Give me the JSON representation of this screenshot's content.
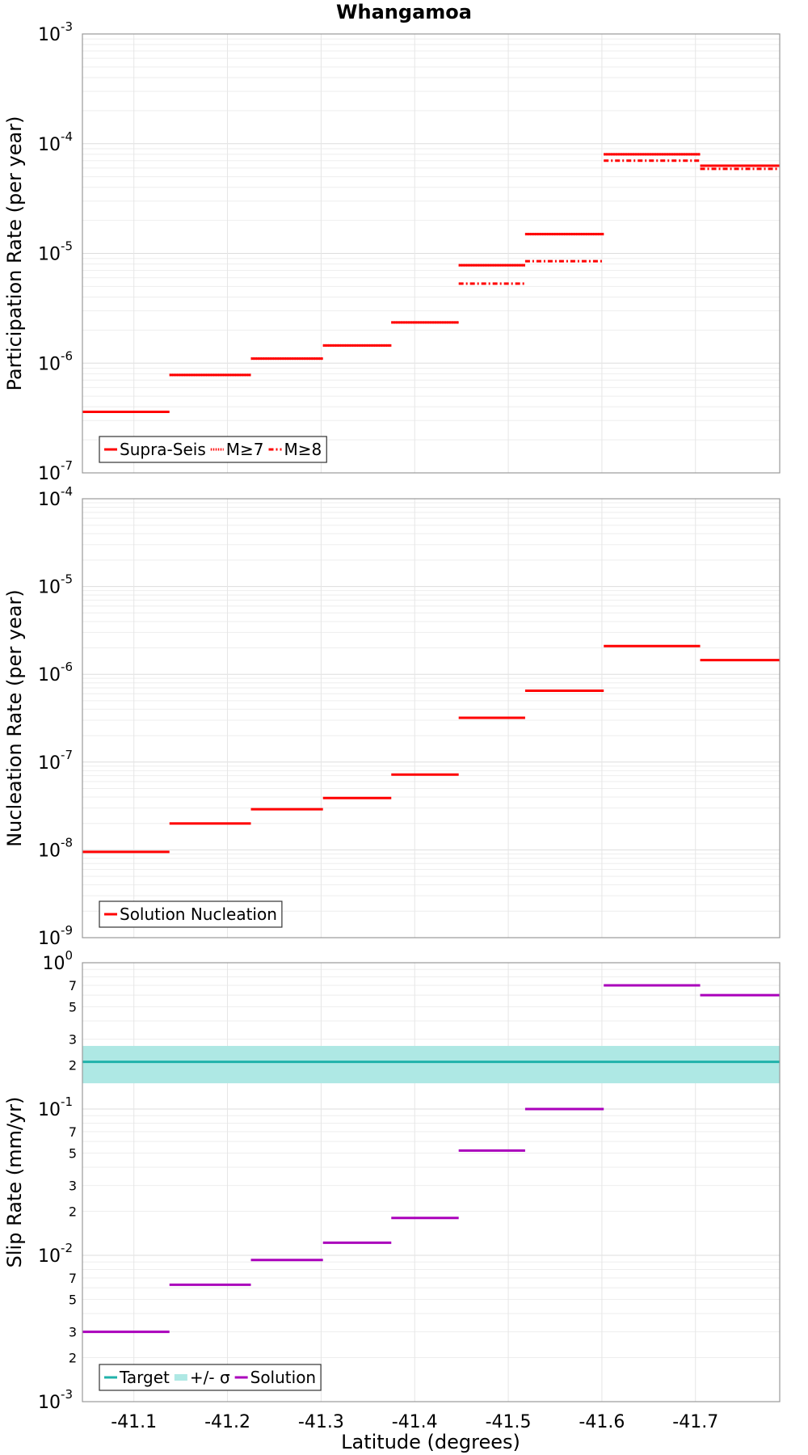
{
  "title": "Whangamoa",
  "x_axis": {
    "label": "Latitude (degrees)",
    "ticks": [
      "-41.1",
      "-41.2",
      "-41.3",
      "-41.4",
      "-41.5",
      "-41.6",
      "-41.7"
    ],
    "tick_values": [
      -41.1,
      -41.2,
      -41.3,
      -41.4,
      -41.5,
      -41.6,
      -41.7
    ],
    "range": [
      -41.045,
      -41.79
    ],
    "direction": "descending latitude left to right"
  },
  "chart_data": [
    {
      "type": "line",
      "name": "participation",
      "ylabel": "Participation Rate (per year)",
      "yscale": "log",
      "ylim": [
        1e-07,
        0.001
      ],
      "y_ticks": [
        {
          "value": 1e-07,
          "base": "10",
          "exp": "-7"
        },
        {
          "value": 1e-06,
          "base": "10",
          "exp": "-6"
        },
        {
          "value": 1e-05,
          "base": "10",
          "exp": "-5"
        },
        {
          "value": 0.0001,
          "base": "10",
          "exp": "-4"
        },
        {
          "value": 0.001,
          "base": "10",
          "exp": "-3"
        }
      ],
      "segments": [
        [
          -41.045,
          -41.138
        ],
        [
          -41.138,
          -41.225
        ],
        [
          -41.225,
          -41.302
        ],
        [
          -41.302,
          -41.375
        ],
        [
          -41.375,
          -41.447
        ],
        [
          -41.447,
          -41.518
        ],
        [
          -41.518,
          -41.602
        ],
        [
          -41.602,
          -41.705
        ],
        [
          -41.705,
          -41.79
        ]
      ],
      "series": [
        {
          "name": "Supra-Seis",
          "color": "#ff0000",
          "dash": "solid",
          "values": [
            3.6e-07,
            7.8e-07,
            1.1e-06,
            1.45e-06,
            2.35e-06,
            7.8e-06,
            1.5e-05,
            8e-05,
            6.3e-05
          ]
        },
        {
          "name": "M≥7",
          "color": "#ff0000",
          "dash": "dotted",
          "values": [
            3.6e-07,
            7.8e-07,
            1.1e-06,
            1.45e-06,
            2.35e-06,
            7.8e-06,
            1.5e-05,
            8e-05,
            6.3e-05
          ]
        },
        {
          "name": "M≥8",
          "color": "#ff0000",
          "dash": "dashdot",
          "values": [
            null,
            null,
            null,
            null,
            null,
            5.3e-06,
            8.5e-06,
            7e-05,
            5.9e-05
          ]
        }
      ],
      "legend": {
        "position": "bottom-left",
        "entries": [
          "Supra-Seis",
          "M≥7",
          "M≥8"
        ]
      }
    },
    {
      "type": "line",
      "name": "nucleation",
      "ylabel": "Nucleation Rate (per year)",
      "yscale": "log",
      "ylim": [
        1e-09,
        0.0001
      ],
      "y_ticks": [
        {
          "value": 1e-09,
          "base": "10",
          "exp": "-9"
        },
        {
          "value": 1e-08,
          "base": "10",
          "exp": "-8"
        },
        {
          "value": 1e-07,
          "base": "10",
          "exp": "-7"
        },
        {
          "value": 1e-06,
          "base": "10",
          "exp": "-6"
        },
        {
          "value": 1e-05,
          "base": "10",
          "exp": "-5"
        },
        {
          "value": 0.0001,
          "base": "10",
          "exp": "-4"
        }
      ],
      "segments": [
        [
          -41.045,
          -41.138
        ],
        [
          -41.138,
          -41.225
        ],
        [
          -41.225,
          -41.302
        ],
        [
          -41.302,
          -41.375
        ],
        [
          -41.375,
          -41.447
        ],
        [
          -41.447,
          -41.518
        ],
        [
          -41.518,
          -41.602
        ],
        [
          -41.602,
          -41.705
        ],
        [
          -41.705,
          -41.79
        ]
      ],
      "series": [
        {
          "name": "Solution Nucleation",
          "color": "#ff0000",
          "dash": "solid",
          "values": [
            9.5e-09,
            2e-08,
            2.9e-08,
            3.9e-08,
            7.2e-08,
            3.2e-07,
            6.5e-07,
            2.1e-06,
            1.45e-06
          ]
        }
      ],
      "legend": {
        "position": "bottom-left",
        "entries": [
          "Solution Nucleation"
        ]
      }
    },
    {
      "type": "line",
      "name": "slip",
      "ylabel": "Slip Rate (mm/yr)",
      "yscale": "log",
      "ylim": [
        0.001,
        1
      ],
      "y_ticks": [
        {
          "value": 0.001,
          "base": "10",
          "exp": "-3"
        },
        {
          "value": 0.01,
          "base": "10",
          "exp": "-2"
        },
        {
          "value": 0.1,
          "base": "10",
          "exp": "-1"
        },
        {
          "value": 1,
          "base": "10",
          "exp": "0"
        }
      ],
      "y_minor_labels": [
        {
          "value": 0.002,
          "label": "2"
        },
        {
          "value": 0.003,
          "label": "3"
        },
        {
          "value": 0.005,
          "label": "5"
        },
        {
          "value": 0.007,
          "label": "7"
        },
        {
          "value": 0.02,
          "label": "2"
        },
        {
          "value": 0.03,
          "label": "3"
        },
        {
          "value": 0.05,
          "label": "5"
        },
        {
          "value": 0.07,
          "label": "7"
        },
        {
          "value": 0.2,
          "label": "2"
        },
        {
          "value": 0.3,
          "label": "3"
        },
        {
          "value": 0.5,
          "label": "5"
        },
        {
          "value": 0.7,
          "label": "7"
        }
      ],
      "target": {
        "name": "Target",
        "color": "#20b2aa",
        "value": 0.21
      },
      "sigma_band": {
        "name": "+/- σ",
        "color": "#aee8e4",
        "lower": 0.15,
        "upper": 0.27
      },
      "segments": [
        [
          -41.045,
          -41.138
        ],
        [
          -41.138,
          -41.225
        ],
        [
          -41.225,
          -41.302
        ],
        [
          -41.302,
          -41.375
        ],
        [
          -41.375,
          -41.447
        ],
        [
          -41.447,
          -41.518
        ],
        [
          -41.518,
          -41.602
        ],
        [
          -41.602,
          -41.705
        ],
        [
          -41.705,
          -41.79
        ]
      ],
      "series": [
        {
          "name": "Solution",
          "color": "#aa00bb",
          "dash": "solid",
          "values": [
            0.003,
            0.0063,
            0.0093,
            0.0122,
            0.018,
            0.052,
            0.1,
            0.7,
            0.6
          ]
        }
      ],
      "legend": {
        "position": "bottom-left",
        "entries": [
          "Target",
          "+/- σ",
          "Solution"
        ]
      }
    }
  ]
}
